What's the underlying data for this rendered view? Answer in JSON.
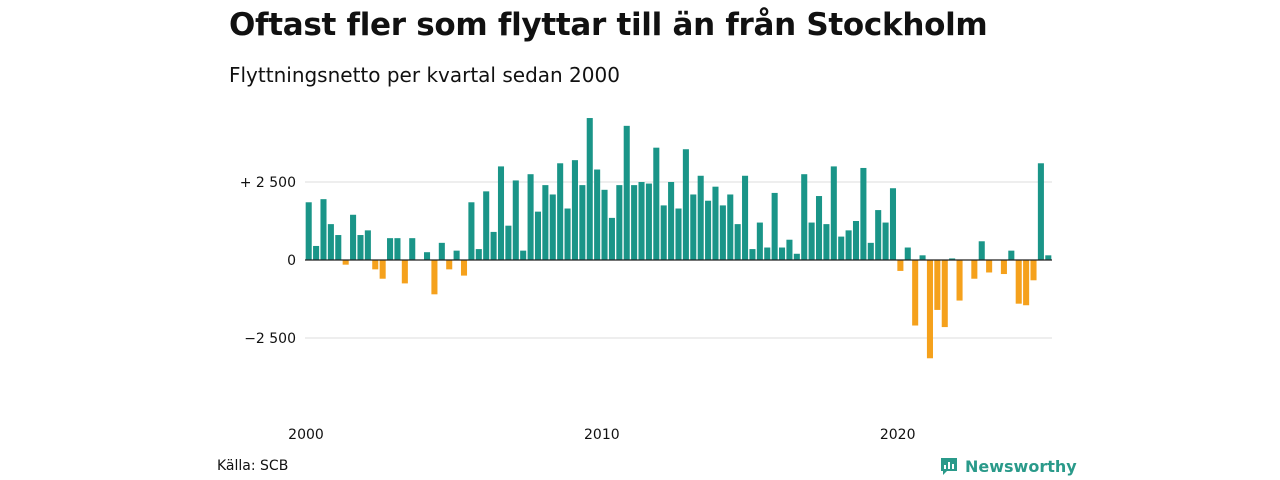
{
  "title": "Oftast fler som flyttar till än från Stockholm",
  "subtitle": "Flyttningsnetto per kvartal sedan 2000",
  "source": "Källa: SCB",
  "brand": "Newsworthy",
  "colors": {
    "positive": "#1a9588",
    "negative": "#f5a11c",
    "grid": "#dddddd",
    "baseline": "#222222",
    "brand": "#2a9a8a"
  },
  "chart_data": {
    "type": "bar",
    "x_start": "2000 Q1",
    "x_tick_labels": [
      "2000",
      "2010",
      "2020"
    ],
    "y_tick_labels": [
      "+ 2 500",
      "0",
      "−2 500"
    ],
    "y_ticks": [
      2500,
      0,
      -2500
    ],
    "ylim": [
      -4300,
      4600
    ],
    "grid": true,
    "values": [
      1850,
      450,
      1950,
      1150,
      800,
      -150,
      1450,
      800,
      950,
      -300,
      -600,
      700,
      700,
      -750,
      700,
      0,
      250,
      -1100,
      550,
      -300,
      300,
      -500,
      1850,
      350,
      2200,
      900,
      3000,
      1100,
      2550,
      300,
      2750,
      1550,
      2400,
      2100,
      3100,
      1650,
      3200,
      2400,
      4550,
      2900,
      2250,
      1350,
      2400,
      4300,
      2400,
      2500,
      2450,
      3600,
      1750,
      2500,
      1650,
      3550,
      2100,
      2700,
      1900,
      2350,
      1750,
      2100,
      1150,
      2700,
      350,
      1200,
      400,
      2150,
      400,
      650,
      200,
      2750,
      1200,
      2050,
      1150,
      3000,
      750,
      950,
      1250,
      2950,
      550,
      1600,
      1200,
      2300,
      -350,
      400,
      -2100,
      150,
      -3150,
      -1600,
      -2150,
      50,
      -1300,
      0,
      -600,
      600,
      -400,
      0,
      -450,
      300,
      -1400,
      -1450,
      -650,
      3100,
      150
    ]
  }
}
